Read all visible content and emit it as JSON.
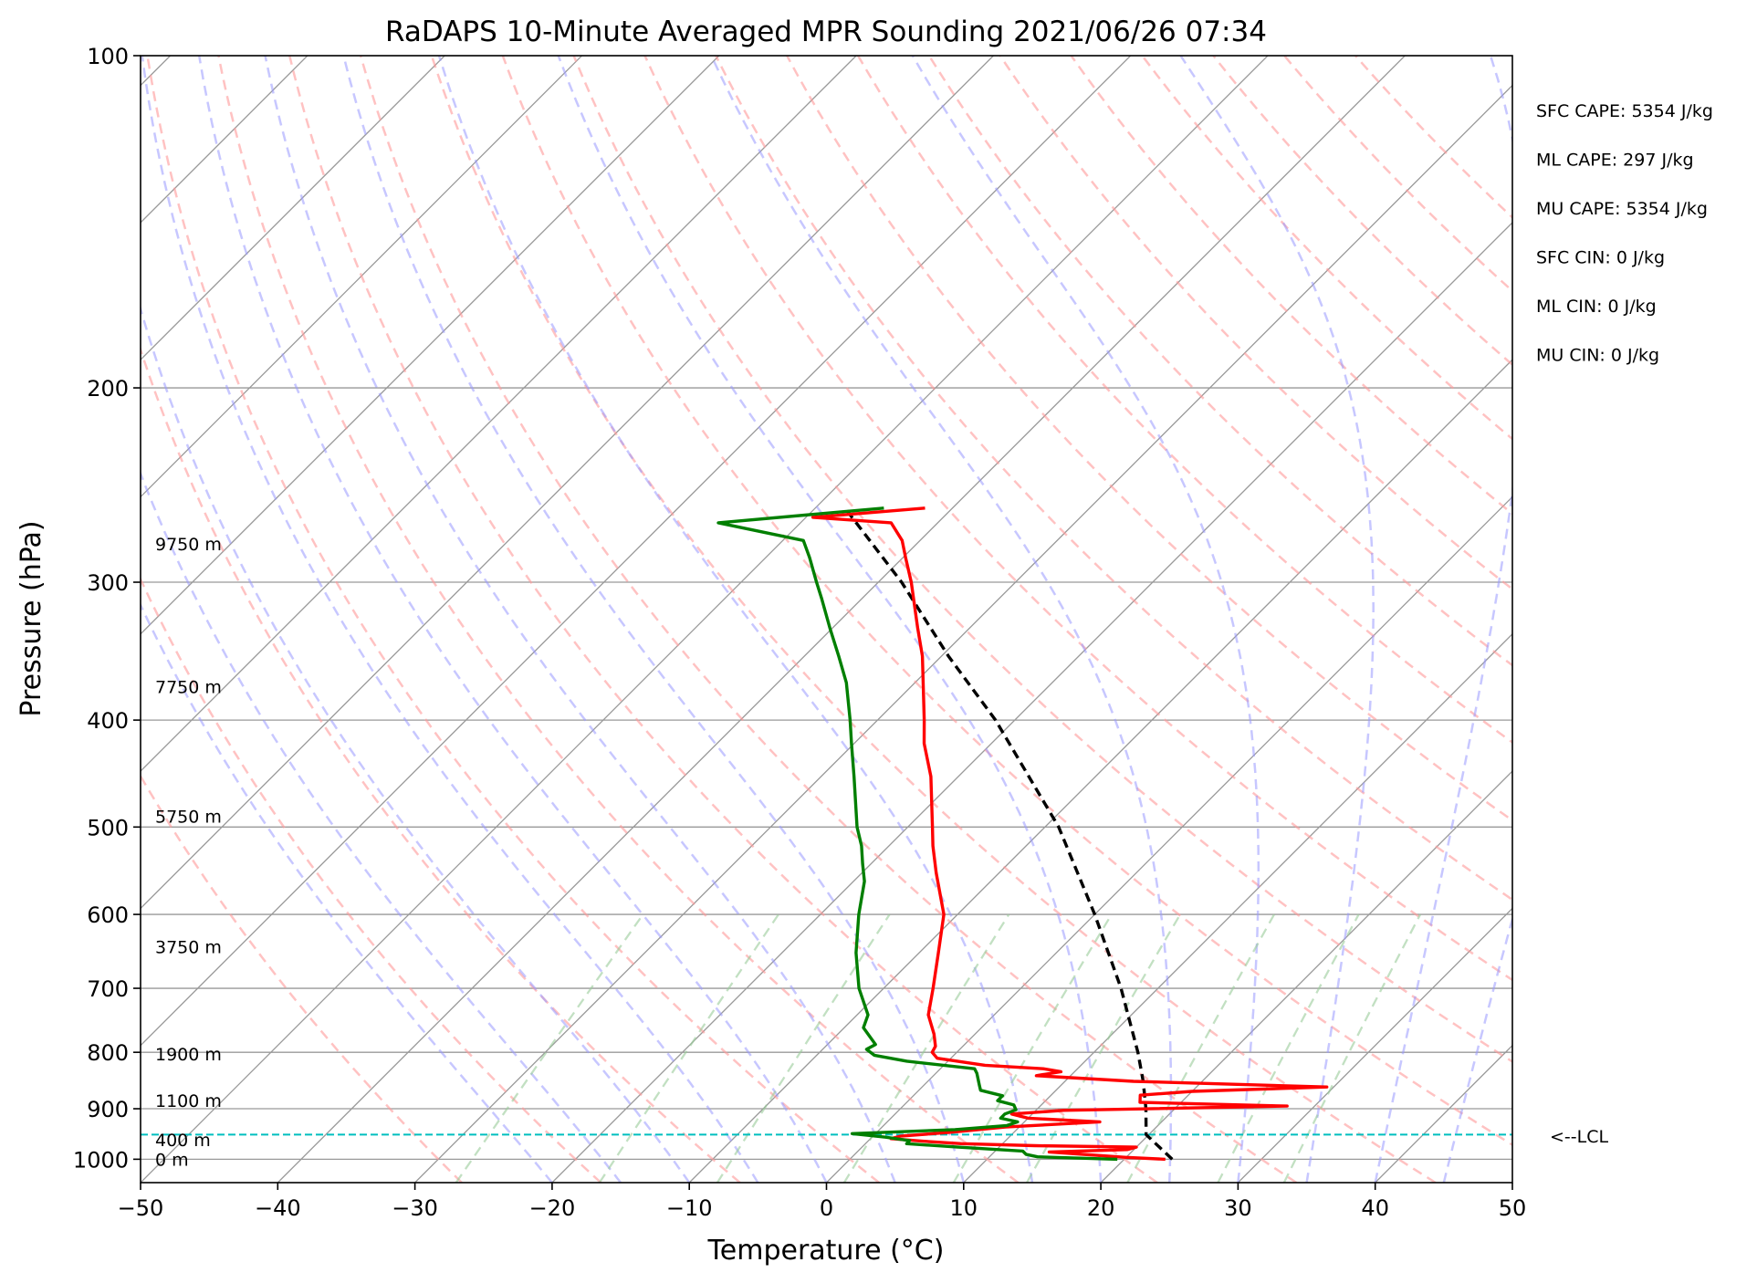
{
  "chart_data": {
    "type": "skew-t",
    "title": "RaDAPS 10-Minute Averaged MPR Sounding 2021/06/26 07:34",
    "xlabel": "Temperature (°C)",
    "ylabel": "Pressure (hPa)",
    "xlim": [
      -50,
      50
    ],
    "ylim": [
      1050,
      100
    ],
    "y_scale": "log",
    "grid": true,
    "x_ticks": [
      "−50",
      "−40",
      "−30",
      "−20",
      "−10",
      "0",
      "10",
      "20",
      "30",
      "40",
      "50"
    ],
    "y_ticks": [
      "100",
      "200",
      "300",
      "400",
      "500",
      "600",
      "700",
      "800",
      "900",
      "1000"
    ],
    "temperature": [
      {
        "p": 1000,
        "t": 23.0
      },
      {
        "p": 996,
        "t": 20.0
      },
      {
        "p": 985,
        "t": 14.0
      },
      {
        "p": 980,
        "t": 19.5
      },
      {
        "p": 975,
        "t": 20.0
      },
      {
        "p": 972,
        "t": 12.5
      },
      {
        "p": 968,
        "t": 7.0
      },
      {
        "p": 963,
        "t": 4.0
      },
      {
        "p": 958,
        "t": 1.5
      },
      {
        "p": 953,
        "t": 2.0
      },
      {
        "p": 945,
        "t": 5.5
      },
      {
        "p": 935,
        "t": 9.0
      },
      {
        "p": 925,
        "t": 15.5
      },
      {
        "p": 918,
        "t": 10.0
      },
      {
        "p": 910,
        "t": 8.5
      },
      {
        "p": 903,
        "t": 12.0
      },
      {
        "p": 895,
        "t": 28.0
      },
      {
        "p": 888,
        "t": 17.0
      },
      {
        "p": 875,
        "t": 16.5
      },
      {
        "p": 868,
        "t": 20.0
      },
      {
        "p": 860,
        "t": 29.5
      },
      {
        "p": 850,
        "t": 15.0
      },
      {
        "p": 840,
        "t": 7.5
      },
      {
        "p": 833,
        "t": 9.0
      },
      {
        "p": 828,
        "t": 7.5
      },
      {
        "p": 822,
        "t": 3.0
      },
      {
        "p": 810,
        "t": -1.0
      },
      {
        "p": 800,
        "t": -1.8
      },
      {
        "p": 790,
        "t": -2.0
      },
      {
        "p": 770,
        "t": -3.0
      },
      {
        "p": 740,
        "t": -4.8
      },
      {
        "p": 700,
        "t": -6.4
      },
      {
        "p": 650,
        "t": -8.6
      },
      {
        "p": 600,
        "t": -11.0
      },
      {
        "p": 550,
        "t": -14.6
      },
      {
        "p": 520,
        "t": -16.8
      },
      {
        "p": 500,
        "t": -18.2
      },
      {
        "p": 450,
        "t": -22.0
      },
      {
        "p": 420,
        "t": -24.9
      },
      {
        "p": 400,
        "t": -26.6
      },
      {
        "p": 350,
        "t": -31.4
      },
      {
        "p": 330,
        "t": -33.8
      },
      {
        "p": 300,
        "t": -37.6
      },
      {
        "p": 285,
        "t": -39.8
      },
      {
        "p": 275,
        "t": -41.3
      },
      {
        "p": 265,
        "t": -43.4
      },
      {
        "p": 262,
        "t": -49.5
      },
      {
        "p": 257,
        "t": -42.0
      }
    ],
    "dewpoint": [
      {
        "p": 1000,
        "t": 19.5
      },
      {
        "p": 995,
        "t": 13.5
      },
      {
        "p": 990,
        "t": 12.5
      },
      {
        "p": 983,
        "t": 12.0
      },
      {
        "p": 975,
        "t": 7.0
      },
      {
        "p": 968,
        "t": 3.0
      },
      {
        "p": 962,
        "t": 3.0
      },
      {
        "p": 955,
        "t": 1.0
      },
      {
        "p": 948,
        "t": -1.7
      },
      {
        "p": 940,
        "t": 5.5
      },
      {
        "p": 932,
        "t": 9.0
      },
      {
        "p": 925,
        "t": 9.5
      },
      {
        "p": 918,
        "t": 8.0
      },
      {
        "p": 910,
        "t": 8.0
      },
      {
        "p": 902,
        "t": 8.5
      },
      {
        "p": 893,
        "t": 8.0
      },
      {
        "p": 885,
        "t": 6.5
      },
      {
        "p": 876,
        "t": 6.5
      },
      {
        "p": 866,
        "t": 4.5
      },
      {
        "p": 856,
        "t": 4.0
      },
      {
        "p": 846,
        "t": 3.5
      },
      {
        "p": 836,
        "t": 3.0
      },
      {
        "p": 828,
        "t": 2.5
      },
      {
        "p": 815,
        "t": -3.0
      },
      {
        "p": 805,
        "t": -5.8
      },
      {
        "p": 795,
        "t": -6.8
      },
      {
        "p": 787,
        "t": -6.5
      },
      {
        "p": 760,
        "t": -8.6
      },
      {
        "p": 740,
        "t": -9.2
      },
      {
        "p": 700,
        "t": -11.8
      },
      {
        "p": 650,
        "t": -14.6
      },
      {
        "p": 600,
        "t": -17.2
      },
      {
        "p": 560,
        "t": -19.2
      },
      {
        "p": 540,
        "t": -20.6
      },
      {
        "p": 520,
        "t": -22.0
      },
      {
        "p": 500,
        "t": -23.7
      },
      {
        "p": 450,
        "t": -27.6
      },
      {
        "p": 420,
        "t": -30.2
      },
      {
        "p": 400,
        "t": -32.0
      },
      {
        "p": 370,
        "t": -35.0
      },
      {
        "p": 350,
        "t": -37.5
      },
      {
        "p": 330,
        "t": -40.2
      },
      {
        "p": 310,
        "t": -43.0
      },
      {
        "p": 300,
        "t": -44.5
      },
      {
        "p": 285,
        "t": -46.8
      },
      {
        "p": 275,
        "t": -48.5
      },
      {
        "p": 265,
        "t": -56.0
      },
      {
        "p": 257,
        "t": -45.0
      }
    ],
    "parcel": [
      {
        "p": 1000,
        "t": 23.5
      },
      {
        "p": 950,
        "t": 19.8
      },
      {
        "p": 900,
        "t": 17.9
      },
      {
        "p": 850,
        "t": 15.7
      },
      {
        "p": 800,
        "t": 13.2
      },
      {
        "p": 700,
        "t": 7.3
      },
      {
        "p": 600,
        "t": 0.0
      },
      {
        "p": 500,
        "t": -9.0
      },
      {
        "p": 400,
        "t": -21.4
      },
      {
        "p": 350,
        "t": -29.5
      },
      {
        "p": 300,
        "t": -38.3
      },
      {
        "p": 258,
        "t": -47.6
      }
    ],
    "lcl_pressure": 950,
    "lcl_label": "<--LCL",
    "height_labels": [
      {
        "label": "9750 m",
        "p": 277
      },
      {
        "label": "7750 m",
        "p": 373
      },
      {
        "label": "5750 m",
        "p": 489
      },
      {
        "label": "3750 m",
        "p": 642
      },
      {
        "label": "1900 m",
        "p": 803
      },
      {
        "label": "1100 m",
        "p": 885
      },
      {
        "label": "400 m",
        "p": 960
      },
      {
        "label": "0 m",
        "p": 1000
      }
    ],
    "indices": [
      "SFC CAPE: 5354 J/kg",
      "ML CAPE: 297 J/kg",
      "MU CAPE: 5354 J/kg",
      "SFC CIN: 0 J/kg",
      "ML CIN: 0 J/kg",
      "MU CIN: 0 J/kg"
    ],
    "colors": {
      "temperature": "#ff0000",
      "dewpoint": "#007f00",
      "parcel": "#000000",
      "lcl": "#00bfbf",
      "dry_adiabat": "#ff9999",
      "moist_adiabat": "#9999ff",
      "mixing_ratio": "#99cc99",
      "isotherm": "#999999"
    }
  }
}
